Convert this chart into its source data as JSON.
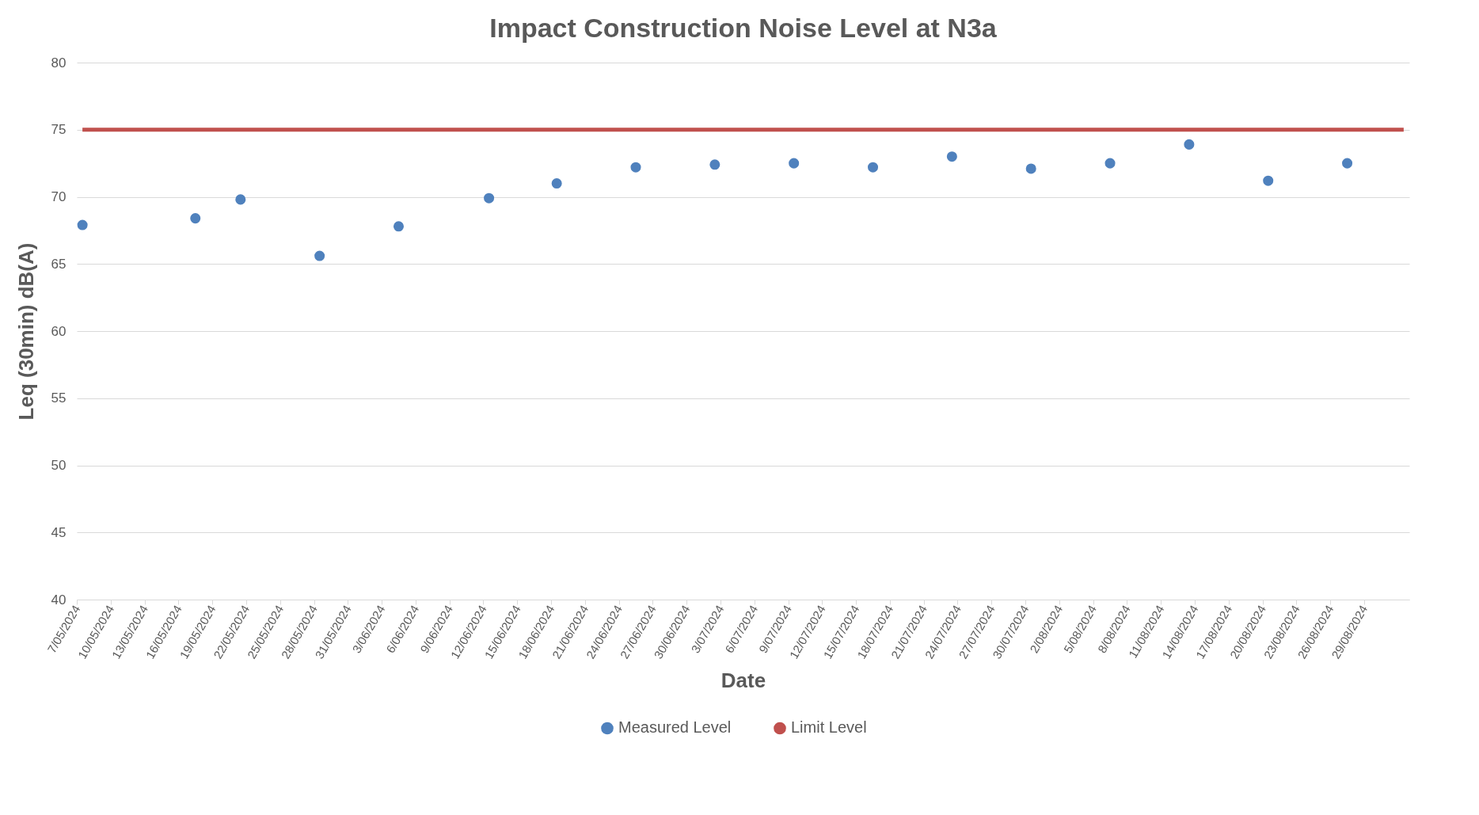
{
  "chart_data": {
    "type": "scatter",
    "title": "Impact Construction Noise Level at N3a",
    "xlabel": "Date",
    "ylabel": "Leq (30min) dB(A)",
    "xlim": [
      "2024-05-07",
      "2024-09-02"
    ],
    "ylim": [
      40,
      80
    ],
    "yticks": [
      40,
      45,
      50,
      55,
      60,
      65,
      70,
      75,
      80
    ],
    "xticks": [
      {
        "value": "2024-05-07",
        "label": "7/05/2024"
      },
      {
        "value": "2024-05-10",
        "label": "10/05/2024"
      },
      {
        "value": "2024-05-13",
        "label": "13/05/2024"
      },
      {
        "value": "2024-05-16",
        "label": "16/05/2024"
      },
      {
        "value": "2024-05-19",
        "label": "19/05/2024"
      },
      {
        "value": "2024-05-22",
        "label": "22/05/2024"
      },
      {
        "value": "2024-05-25",
        "label": "25/05/2024"
      },
      {
        "value": "2024-05-28",
        "label": "28/05/2024"
      },
      {
        "value": "2024-05-31",
        "label": "31/05/2024"
      },
      {
        "value": "2024-06-03",
        "label": "3/06/2024"
      },
      {
        "value": "2024-06-06",
        "label": "6/06/2024"
      },
      {
        "value": "2024-06-09",
        "label": "9/06/2024"
      },
      {
        "value": "2024-06-12",
        "label": "12/06/2024"
      },
      {
        "value": "2024-06-15",
        "label": "15/06/2024"
      },
      {
        "value": "2024-06-18",
        "label": "18/06/2024"
      },
      {
        "value": "2024-06-21",
        "label": "21/06/2024"
      },
      {
        "value": "2024-06-24",
        "label": "24/06/2024"
      },
      {
        "value": "2024-06-27",
        "label": "27/06/2024"
      },
      {
        "value": "2024-06-30",
        "label": "30/06/2024"
      },
      {
        "value": "2024-07-03",
        "label": "3/07/2024"
      },
      {
        "value": "2024-07-06",
        "label": "6/07/2024"
      },
      {
        "value": "2024-07-09",
        "label": "9/07/2024"
      },
      {
        "value": "2024-07-12",
        "label": "12/07/2024"
      },
      {
        "value": "2024-07-15",
        "label": "15/07/2024"
      },
      {
        "value": "2024-07-18",
        "label": "18/07/2024"
      },
      {
        "value": "2024-07-21",
        "label": "21/07/2024"
      },
      {
        "value": "2024-07-24",
        "label": "24/07/2024"
      },
      {
        "value": "2024-07-27",
        "label": "27/07/2024"
      },
      {
        "value": "2024-07-30",
        "label": "30/07/2024"
      },
      {
        "value": "2024-08-02",
        "label": "2/08/2024"
      },
      {
        "value": "2024-08-05",
        "label": "5/08/2024"
      },
      {
        "value": "2024-08-08",
        "label": "8/08/2024"
      },
      {
        "value": "2024-08-11",
        "label": "11/08/2024"
      },
      {
        "value": "2024-08-14",
        "label": "14/08/2024"
      },
      {
        "value": "2024-08-17",
        "label": "17/08/2024"
      },
      {
        "value": "2024-08-20",
        "label": "20/08/2024"
      },
      {
        "value": "2024-08-23",
        "label": "23/08/2024"
      },
      {
        "value": "2024-08-26",
        "label": "26/08/2024"
      },
      {
        "value": "2024-08-29",
        "label": "29/08/2024"
      }
    ],
    "grid": "y",
    "legend": "bottom",
    "series": [
      {
        "name": "Measured Level",
        "marker": "circle",
        "color": "#4f81bd",
        "x": [
          "2024-05-07T12:00",
          "2024-05-17T12:00",
          "2024-05-21T12:00",
          "2024-05-28T12:00",
          "2024-06-04T12:00",
          "2024-06-12T12:00",
          "2024-06-18T12:00",
          "2024-06-25T12:00",
          "2024-07-02T12:00",
          "2024-07-09T12:00",
          "2024-07-16T12:00",
          "2024-07-23T12:00",
          "2024-07-30T12:00",
          "2024-08-06T12:00",
          "2024-08-13T12:00",
          "2024-08-20T12:00",
          "2024-08-27T12:00"
        ],
        "values": [
          67.9,
          68.4,
          69.8,
          65.6,
          67.8,
          69.9,
          71.0,
          72.2,
          72.4,
          72.5,
          72.2,
          73.0,
          72.1,
          72.5,
          73.9,
          71.2,
          72.5
        ]
      },
      {
        "name": "Limit Level",
        "type": "line",
        "color": "#c0504d",
        "line_style": "solid",
        "x": [
          "2024-05-07T12:00",
          "2024-09-01T12:00"
        ],
        "values": [
          75,
          75
        ]
      }
    ]
  }
}
